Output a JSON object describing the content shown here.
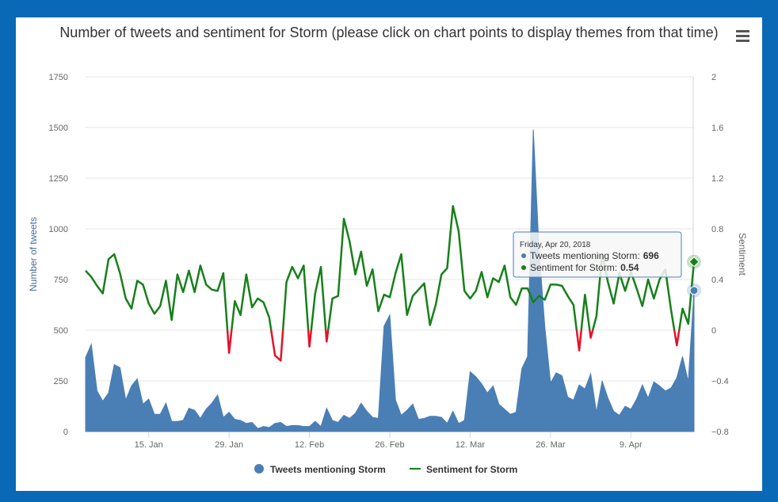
{
  "chart_data": {
    "type": "area_line",
    "title": "Number of tweets and sentiment for Storm (please click on chart points to display themes from that time)",
    "y_label": "Number of tweets",
    "y2_label": "Sentiment",
    "x": [
      "2018-01-04",
      "2018-01-05",
      "2018-01-06",
      "2018-01-07",
      "2018-01-08",
      "2018-01-09",
      "2018-01-10",
      "2018-01-11",
      "2018-01-12",
      "2018-01-13",
      "2018-01-14",
      "2018-01-15",
      "2018-01-16",
      "2018-01-17",
      "2018-01-18",
      "2018-01-19",
      "2018-01-20",
      "2018-01-21",
      "2018-01-22",
      "2018-01-23",
      "2018-01-24",
      "2018-01-25",
      "2018-01-26",
      "2018-01-27",
      "2018-01-28",
      "2018-01-29",
      "2018-01-30",
      "2018-01-31",
      "2018-02-01",
      "2018-02-02",
      "2018-02-03",
      "2018-02-04",
      "2018-02-05",
      "2018-02-06",
      "2018-02-07",
      "2018-02-08",
      "2018-02-09",
      "2018-02-10",
      "2018-02-11",
      "2018-02-12",
      "2018-02-13",
      "2018-02-14",
      "2018-02-15",
      "2018-02-16",
      "2018-02-17",
      "2018-02-18",
      "2018-02-19",
      "2018-02-20",
      "2018-02-21",
      "2018-02-22",
      "2018-02-23",
      "2018-02-24",
      "2018-02-25",
      "2018-02-26",
      "2018-02-27",
      "2018-02-28",
      "2018-03-01",
      "2018-03-02",
      "2018-03-03",
      "2018-03-04",
      "2018-03-05",
      "2018-03-06",
      "2018-03-07",
      "2018-03-08",
      "2018-03-09",
      "2018-03-10",
      "2018-03-11",
      "2018-03-12",
      "2018-03-13",
      "2018-03-14",
      "2018-03-15",
      "2018-03-16",
      "2018-03-17",
      "2018-03-18",
      "2018-03-19",
      "2018-03-20",
      "2018-03-21",
      "2018-03-22",
      "2018-03-23",
      "2018-03-24",
      "2018-03-25",
      "2018-03-26",
      "2018-03-27",
      "2018-03-28",
      "2018-03-29",
      "2018-03-30",
      "2018-03-31",
      "2018-04-01",
      "2018-04-02",
      "2018-04-03",
      "2018-04-04",
      "2018-04-05",
      "2018-04-06",
      "2018-04-07",
      "2018-04-08",
      "2018-04-09",
      "2018-04-10",
      "2018-04-11",
      "2018-04-12",
      "2018-04-13",
      "2018-04-14",
      "2018-04-15",
      "2018-04-16",
      "2018-04-17",
      "2018-04-18",
      "2018-04-19",
      "2018-04-20"
    ],
    "xlim": [
      "2018-01-04",
      "2018-04-20"
    ],
    "xticks": [
      {
        "value": "2018-01-15",
        "label": "15. Jan"
      },
      {
        "value": "2018-01-29",
        "label": "29. Jan"
      },
      {
        "value": "2018-02-12",
        "label": "12. Feb"
      },
      {
        "value": "2018-02-26",
        "label": "26. Feb"
      },
      {
        "value": "2018-03-12",
        "label": "12. Mar"
      },
      {
        "value": "2018-03-26",
        "label": "26. Mar"
      },
      {
        "value": "2018-04-09",
        "label": "9. Apr"
      }
    ],
    "ylim": [
      0,
      1750
    ],
    "yticks": [
      0,
      250,
      500,
      750,
      1000,
      1250,
      1500,
      1750
    ],
    "y2lim": [
      -0.8,
      2
    ],
    "y2ticks": [
      {
        "value": -0.8,
        "label": "−0.8"
      },
      {
        "value": -0.4,
        "label": "−0.4"
      },
      0,
      0.4,
      0.8,
      1.2,
      1.6,
      2
    ],
    "grid": true,
    "legend": "bottom",
    "series": [
      {
        "name": "Tweets mentioning Storm",
        "type": "area",
        "color": "#4a7fb5",
        "values": [
          365,
          430,
          200,
          150,
          190,
          330,
          315,
          155,
          225,
          260,
          135,
          160,
          85,
          85,
          140,
          50,
          50,
          55,
          115,
          105,
          65,
          110,
          140,
          180,
          70,
          95,
          60,
          55,
          40,
          45,
          15,
          25,
          20,
          40,
          45,
          25,
          30,
          30,
          25,
          25,
          50,
          25,
          115,
          55,
          45,
          80,
          65,
          90,
          140,
          100,
          70,
          65,
          520,
          575,
          155,
          80,
          105,
          135,
          60,
          65,
          75,
          75,
          70,
          40,
          100,
          40,
          55,
          295,
          270,
          235,
          190,
          225,
          135,
          110,
          85,
          95,
          310,
          370,
          1490,
          900,
          520,
          240,
          290,
          275,
          170,
          155,
          230,
          210,
          285,
          95,
          250,
          165,
          100,
          80,
          125,
          110,
          160,
          230,
          165,
          245,
          225,
          200,
          215,
          265,
          370,
          245,
          696
        ]
      },
      {
        "name": "Sentiment for Storm",
        "type": "line",
        "axis": "y2",
        "color": "#17801a",
        "negative_color": "#e8102a",
        "values": [
          0.47,
          0.42,
          0.35,
          0.29,
          0.56,
          0.6,
          0.45,
          0.25,
          0.17,
          0.39,
          0.36,
          0.21,
          0.13,
          0.19,
          0.39,
          0.08,
          0.44,
          0.3,
          0.47,
          0.3,
          0.51,
          0.36,
          0.32,
          0.31,
          0.45,
          -0.18,
          0.23,
          0.12,
          0.44,
          0.18,
          0.25,
          0.22,
          0.1,
          -0.2,
          -0.24,
          0.38,
          0.5,
          0.41,
          0.51,
          -0.13,
          0.29,
          0.5,
          -0.09,
          0.25,
          0.27,
          0.88,
          0.7,
          0.44,
          0.62,
          0.35,
          0.48,
          0.15,
          0.28,
          0.26,
          0.45,
          0.6,
          0.12,
          0.27,
          0.32,
          0.37,
          0.04,
          0.2,
          0.44,
          0.49,
          0.98,
          0.78,
          0.31,
          0.25,
          0.31,
          0.46,
          0.26,
          0.41,
          0.38,
          0.51,
          0.26,
          0.2,
          0.33,
          0.33,
          0.22,
          0.27,
          0.24,
          0.36,
          0.36,
          0.35,
          0.27,
          0.2,
          -0.16,
          0.28,
          -0.06,
          0.11,
          0.6,
          0.38,
          0.21,
          0.45,
          0.31,
          0.46,
          0.33,
          0.19,
          0.4,
          0.25,
          0.4,
          0.48,
          0.16,
          -0.12,
          0.17,
          0.05,
          0.54
        ]
      }
    ],
    "tooltip": {
      "header": "Friday, Apr 20, 2018",
      "separator": ":",
      "index": 106
    }
  }
}
